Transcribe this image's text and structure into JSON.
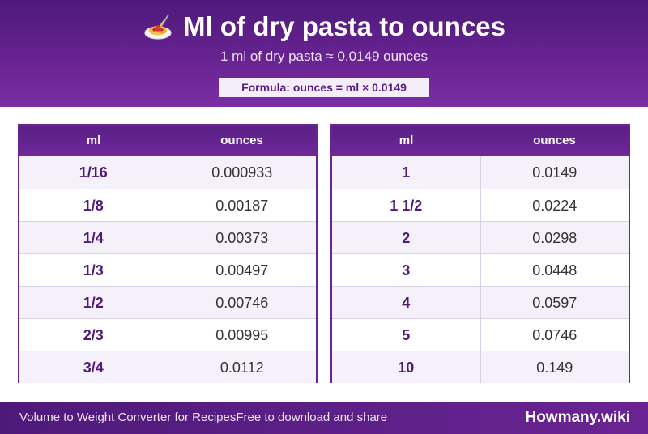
{
  "header": {
    "title": "Ml of dry pasta to ounces",
    "icon": "spaghetti-icon",
    "subtitle": "1 ml of dry pasta ≈ 0.0149 ounces",
    "formula": "Formula: ounces = ml × 0.0149"
  },
  "tables": [
    {
      "col_ml": "ml",
      "col_oz": "ounces",
      "rows": [
        {
          "ml": "1/16",
          "oz": "0.000933"
        },
        {
          "ml": "1/8",
          "oz": "0.00187"
        },
        {
          "ml": "1/4",
          "oz": "0.00373"
        },
        {
          "ml": "1/3",
          "oz": "0.00497"
        },
        {
          "ml": "1/2",
          "oz": "0.00746"
        },
        {
          "ml": "2/3",
          "oz": "0.00995"
        },
        {
          "ml": "3/4",
          "oz": "0.0112"
        }
      ]
    },
    {
      "col_ml": "ml",
      "col_oz": "ounces",
      "rows": [
        {
          "ml": "1",
          "oz": "0.0149"
        },
        {
          "ml": "1 1/2",
          "oz": "0.0224"
        },
        {
          "ml": "2",
          "oz": "0.0298"
        },
        {
          "ml": "3",
          "oz": "0.0448"
        },
        {
          "ml": "4",
          "oz": "0.0597"
        },
        {
          "ml": "5",
          "oz": "0.0746"
        },
        {
          "ml": "10",
          "oz": "0.149"
        }
      ]
    }
  ],
  "footer": {
    "left_text_1": "Volume to Weight Converter for Recipes",
    "left_text_2": "Free to download and share",
    "brand": "Howmany.wiki"
  },
  "colors": {
    "accent": "#6a2493",
    "accent_dark": "#4e1a7a",
    "row_alt": "#f5f1fa"
  }
}
